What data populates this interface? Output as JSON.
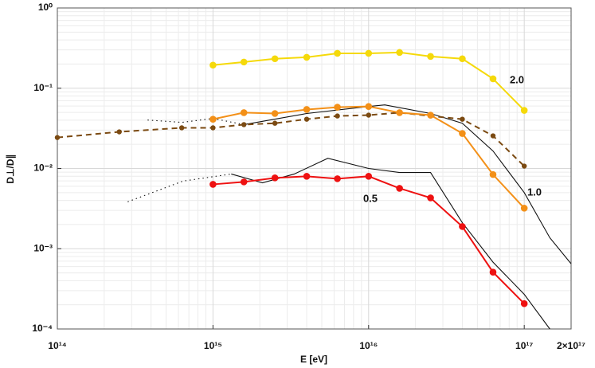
{
  "chart_data": {
    "type": "line",
    "xlabel": "E [eV]",
    "ylabel": "D⊥/D∥",
    "xscale": "log",
    "yscale": "log",
    "grid": true,
    "minor_grid": true,
    "xlim": [
      100000000000000.0,
      2e+17
    ],
    "ylim": [
      0.0001,
      1
    ],
    "xticks": [
      {
        "value": 100000000000000.0,
        "label": "10¹⁴"
      },
      {
        "value": 1000000000000000.0,
        "label": "10¹⁵"
      },
      {
        "value": 1e+16,
        "label": "10¹⁶"
      },
      {
        "value": 1e+17,
        "label": "10¹⁷"
      },
      {
        "value": 2e+17,
        "label": "2×10¹⁷"
      }
    ],
    "yticks": [
      {
        "value": 0.0001,
        "label": "10⁻⁴"
      },
      {
        "value": 0.001,
        "label": "10⁻³"
      },
      {
        "value": 0.01,
        "label": "10⁻²"
      },
      {
        "value": 0.1,
        "label": "10⁻¹"
      },
      {
        "value": 1,
        "label": "10⁰"
      }
    ],
    "annotations": [
      "2.0",
      "1.0",
      "0.5"
    ],
    "series": [
      {
        "color": "#111111",
        "line_style": "dotted",
        "marker": false,
        "x": [
          380000000000000.0,
          630000000000000.0,
          1000000000000000.0,
          1580000000000000.0
        ],
        "values": [
          0.0401,
          0.0375,
          0.042,
          0.0352
        ]
      },
      {
        "color": "#111111",
        "line_style": "solid",
        "marker": false,
        "x": [
          1580000000000000.0,
          4000000000000000.0,
          1e+16,
          1.27e+16,
          2.5e+16,
          4e+16,
          6.3e+16,
          1e+17,
          1.46e+17,
          2e+17
        ],
        "values": [
          0.0352,
          0.0484,
          0.0592,
          0.062,
          0.0484,
          0.0366,
          0.0165,
          0.005,
          0.00137,
          0.00065
        ]
      },
      {
        "color": "#111111",
        "line_style": "dotted",
        "marker": false,
        "x": [
          283000000000000.0,
          640000000000000.0,
          1310000000000000.0
        ],
        "values": [
          0.00384,
          0.00695,
          0.00853
        ]
      },
      {
        "color": "#111111",
        "line_style": "solid",
        "marker": false,
        "x": [
          1310000000000000.0,
          2080000000000000.0,
          3330000000000000.0,
          5470000000000000.0,
          1e+16,
          1.58e+16,
          2.5e+16,
          4e+16,
          6.3e+16,
          1e+17,
          1.46e+17
        ],
        "values": [
          0.00853,
          0.00662,
          0.00853,
          0.0134,
          0.01,
          0.0089,
          0.0089,
          0.00211,
          0.00068,
          0.00027,
          0.0001
        ]
      },
      {
        "color": "#7b4a12",
        "line_style": "dashed",
        "marker": true,
        "x": [
          100000000000000.0,
          250000000000000.0,
          630000000000000.0,
          1000000000000000.0,
          1580000000000000.0,
          2500000000000000.0,
          4000000000000000.0,
          6300000000000000.0,
          1e+16,
          1.58e+16,
          2.5e+16,
          4e+16,
          6.3e+16,
          1e+17
        ],
        "values": [
          0.0243,
          0.0286,
          0.0321,
          0.0321,
          0.0352,
          0.0366,
          0.0411,
          0.0451,
          0.0462,
          0.0496,
          0.0451,
          0.0411,
          0.0255,
          0.0107
        ]
      },
      {
        "color": "#f5d90a",
        "line_style": "solid",
        "marker": true,
        "x": [
          1000000000000000.0,
          1580000000000000.0,
          2500000000000000.0,
          4000000000000000.0,
          6300000000000000.0,
          1e+16,
          1.58e+16,
          2.5e+16,
          4e+16,
          6.3e+16,
          1e+17
        ],
        "values": [
          0.194,
          0.212,
          0.233,
          0.243,
          0.272,
          0.272,
          0.279,
          0.249,
          0.233,
          0.131,
          0.053
        ]
      },
      {
        "color": "#f39018",
        "line_style": "solid",
        "marker": true,
        "x": [
          1000000000000000.0,
          1580000000000000.0,
          2500000000000000.0,
          4000000000000000.0,
          6300000000000000.0,
          1e+16,
          1.58e+16,
          2.5e+16,
          4e+16,
          6.3e+16,
          1e+17
        ],
        "values": [
          0.0411,
          0.0496,
          0.0484,
          0.0543,
          0.058,
          0.0592,
          0.0496,
          0.0462,
          0.0273,
          0.0084,
          0.0032
        ]
      },
      {
        "color": "#ee1111",
        "line_style": "solid",
        "marker": true,
        "x": [
          1000000000000000.0,
          1580000000000000.0,
          2500000000000000.0,
          4000000000000000.0,
          6300000000000000.0,
          1e+16,
          1.58e+16,
          2.5e+16,
          4e+16,
          6.3e+16,
          1e+17
        ],
        "values": [
          0.00634,
          0.0068,
          0.00763,
          0.00799,
          0.00745,
          0.00799,
          0.00566,
          0.0043,
          0.00189,
          0.00051,
          0.000207
        ]
      }
    ]
  }
}
